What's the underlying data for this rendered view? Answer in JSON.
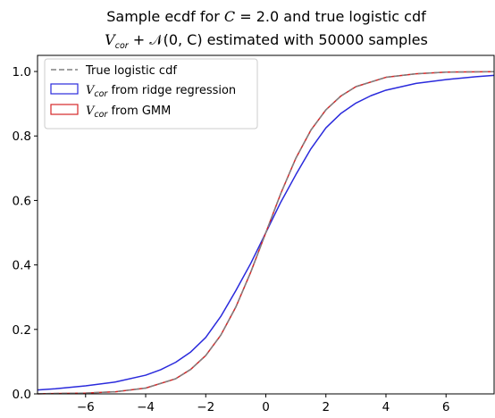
{
  "chart_data": {
    "type": "line",
    "title_line1": {
      "text": "Sample ecdf for ",
      "math": "C",
      "rest": " = 2.0 and true logistic cdf"
    },
    "title_line2": {
      "math": "V",
      "sub": "cor",
      "rest": " + 𝒩(0, C) estimated with 50000 samples"
    },
    "xlabel": "",
    "ylabel": "",
    "xlim": [
      -7.6,
      7.6
    ],
    "ylim": [
      0.0,
      1.05
    ],
    "x_ticks": [
      -6,
      -4,
      -2,
      0,
      2,
      4,
      6
    ],
    "x_tick_labels": [
      "−6",
      "−4",
      "−2",
      "0",
      "2",
      "4",
      "6"
    ],
    "y_ticks": [
      0.0,
      0.2,
      0.4,
      0.6,
      0.8,
      1.0
    ],
    "y_tick_labels": [
      "0.0",
      "0.2",
      "0.4",
      "0.6",
      "0.8",
      "1.0"
    ],
    "grid": false,
    "legend_position": "top-left",
    "series": [
      {
        "name": "True logistic cdf",
        "color": "#808080",
        "style": "dashed",
        "x": [
          -7.6,
          -6,
          -5,
          -4,
          -3,
          -2.5,
          -2,
          -1.5,
          -1,
          -0.5,
          0,
          0.5,
          1,
          1.5,
          2,
          2.5,
          3,
          4,
          5,
          6,
          7.6
        ],
        "y": [
          0.0005,
          0.0025,
          0.0067,
          0.018,
          0.047,
          0.076,
          0.119,
          0.182,
          0.269,
          0.378,
          0.5,
          0.622,
          0.731,
          0.818,
          0.881,
          0.924,
          0.953,
          0.982,
          0.993,
          0.998,
          0.9995
        ]
      },
      {
        "name_main": "V",
        "name_sub": "cor",
        "name_rest": " from ridge regression",
        "color": "#2a2adc",
        "style": "solid",
        "x": [
          -7.6,
          -7,
          -6,
          -5,
          -4,
          -3.5,
          -3,
          -2.5,
          -2,
          -1.5,
          -1,
          -0.5,
          0,
          0.5,
          1,
          1.5,
          2,
          2.5,
          3,
          3.5,
          4,
          5,
          6,
          7,
          7.6
        ],
        "y": [
          0.012,
          0.016,
          0.025,
          0.037,
          0.058,
          0.075,
          0.098,
          0.13,
          0.175,
          0.24,
          0.32,
          0.405,
          0.5,
          0.595,
          0.68,
          0.76,
          0.825,
          0.87,
          0.902,
          0.925,
          0.942,
          0.963,
          0.975,
          0.984,
          0.988
        ]
      },
      {
        "name_main": "V",
        "name_sub": "cor",
        "name_rest": " from GMM",
        "color": "#d62728",
        "style": "solid",
        "x": [
          -7.6,
          -6,
          -5,
          -4,
          -3,
          -2.5,
          -2,
          -1.5,
          -1,
          -0.5,
          0,
          0.5,
          1,
          1.5,
          2,
          2.5,
          3,
          4,
          5,
          6,
          7.6
        ],
        "y": [
          0.0005,
          0.0025,
          0.0067,
          0.018,
          0.047,
          0.076,
          0.119,
          0.182,
          0.269,
          0.378,
          0.5,
          0.622,
          0.731,
          0.818,
          0.881,
          0.924,
          0.953,
          0.982,
          0.993,
          0.998,
          0.9995
        ]
      }
    ]
  }
}
